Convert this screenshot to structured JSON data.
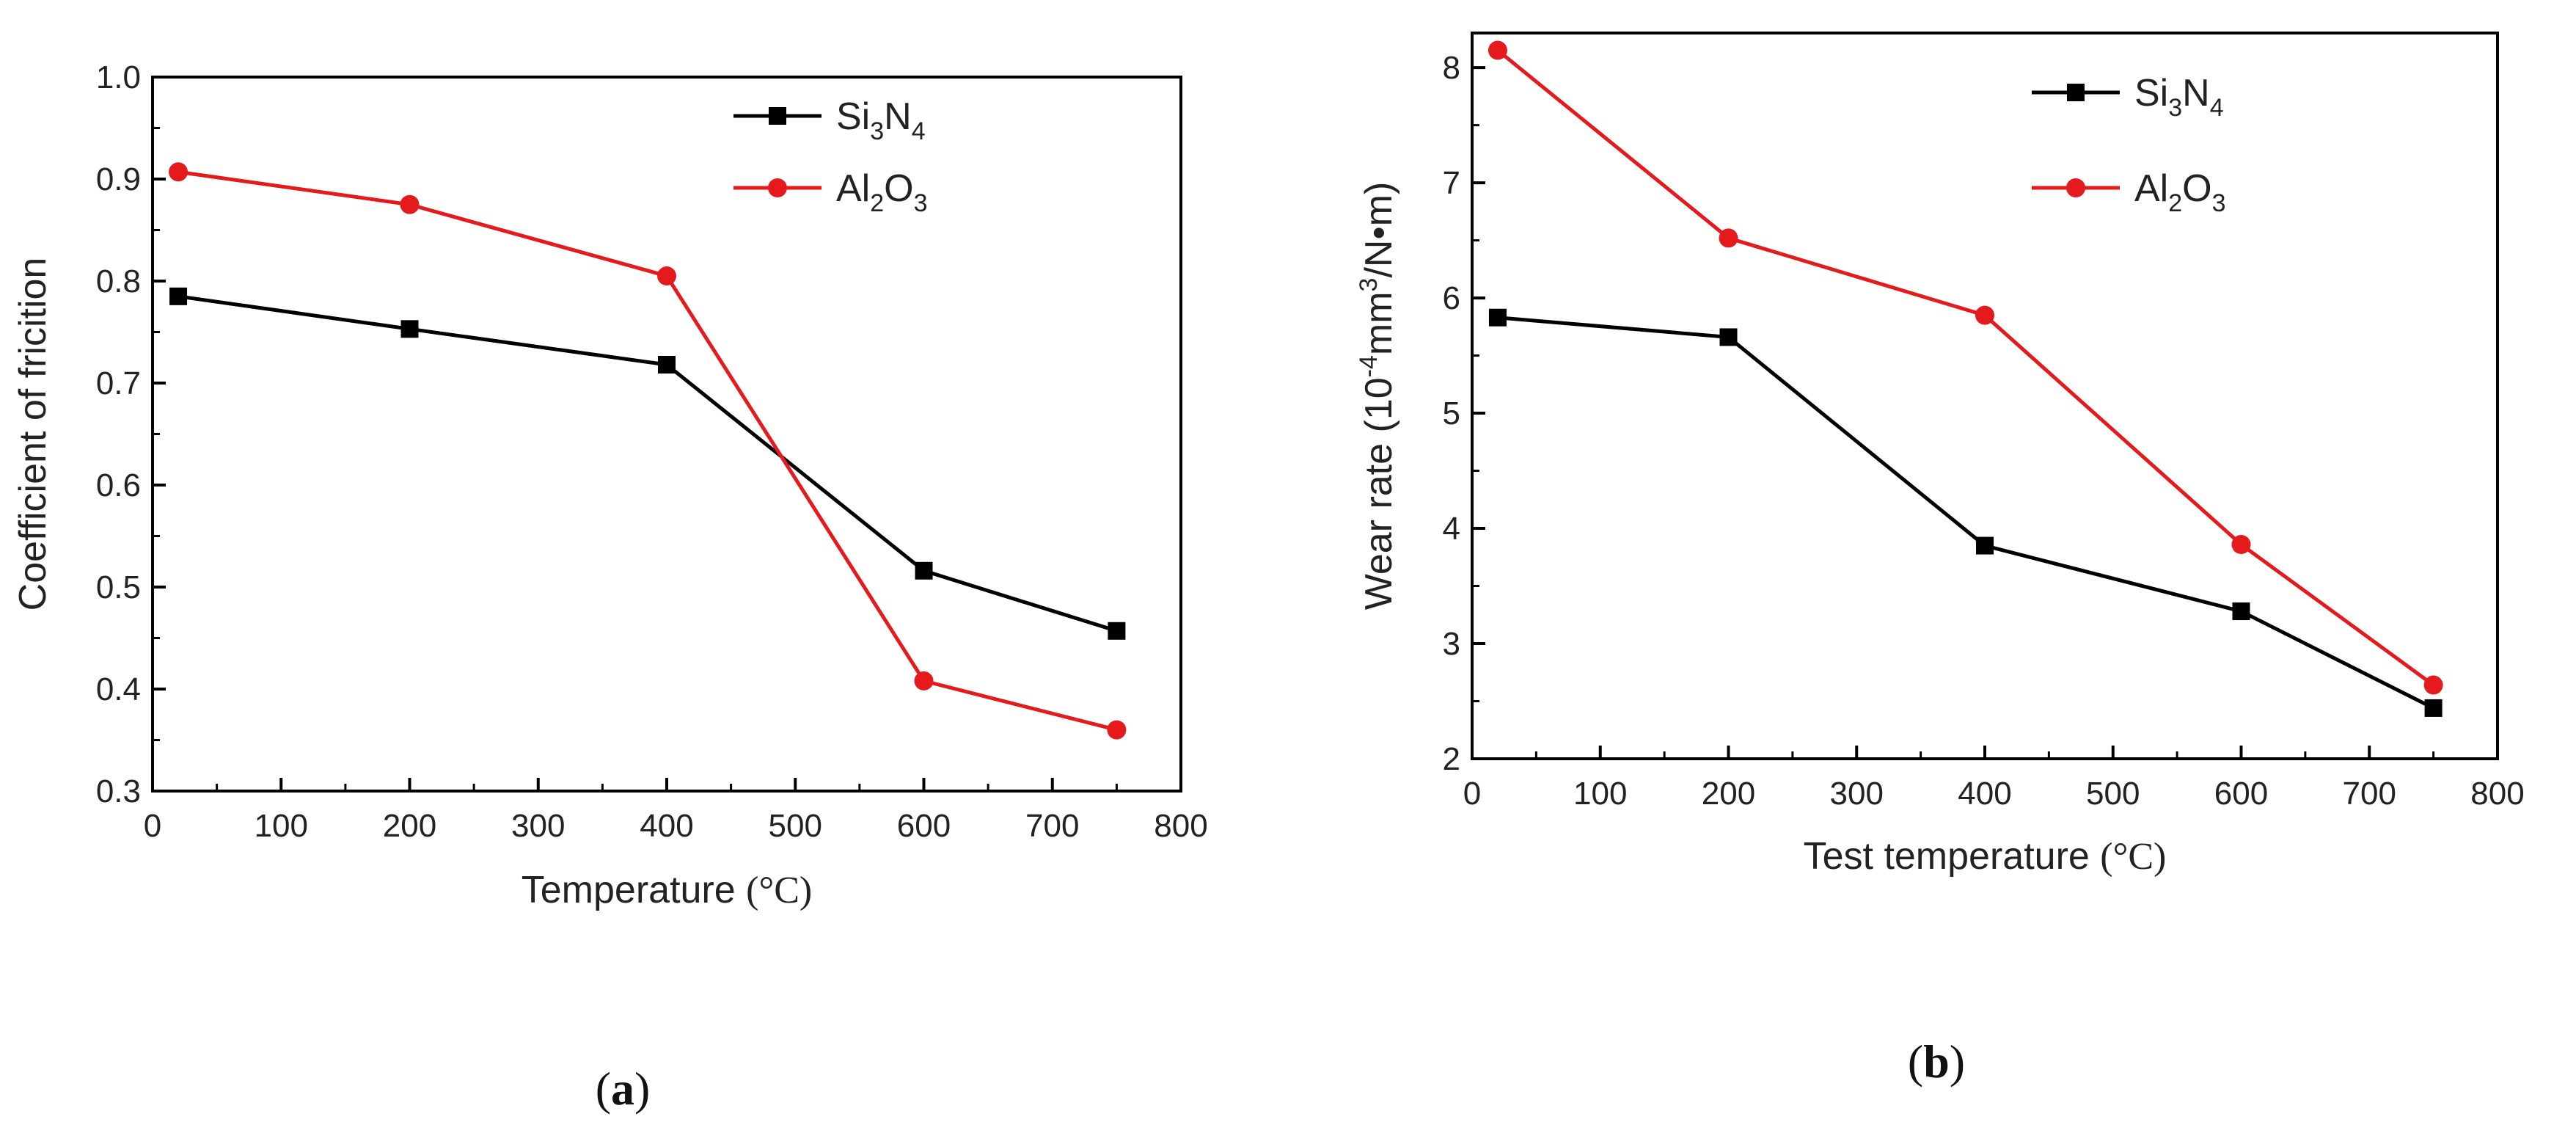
{
  "chart_data": [
    {
      "type": "line",
      "panel": "(a)",
      "panel_letter": "a",
      "xlabel": "Temperature",
      "xlabel_unit": "(°C)",
      "ylabel": "Coefficient of fricition",
      "xlim": [
        0,
        800
      ],
      "ylim": [
        0.3,
        1.0
      ],
      "xticks": [
        0,
        100,
        200,
        300,
        400,
        500,
        600,
        700,
        800
      ],
      "yticks": [
        "0.3",
        "0.4",
        "0.5",
        "0.6",
        "0.7",
        "0.8",
        "0.9",
        "1.0"
      ],
      "legend_position": "top-right",
      "series": [
        {
          "name": "Si3N4",
          "label_parts": [
            [
              "Si",
              ""
            ],
            [
              "3",
              "sub"
            ],
            [
              "N",
              ""
            ],
            [
              "4",
              "sub"
            ]
          ],
          "color": "#000000",
          "marker": "square",
          "x": [
            20,
            200,
            400,
            600,
            750
          ],
          "values": [
            0.785,
            0.753,
            0.718,
            0.516,
            0.457
          ]
        },
        {
          "name": "Al2O3",
          "label_parts": [
            [
              "Al",
              ""
            ],
            [
              "2",
              "sub"
            ],
            [
              "O",
              ""
            ],
            [
              "3",
              "sub"
            ]
          ],
          "color": "#e41a1c",
          "marker": "circle",
          "x": [
            20,
            200,
            400,
            600,
            750
          ],
          "values": [
            0.907,
            0.875,
            0.805,
            0.408,
            0.36
          ]
        }
      ]
    },
    {
      "type": "line",
      "panel": "(b)",
      "panel_letter": "b",
      "xlabel": "Test temperature",
      "xlabel_unit": "(°C)",
      "ylabel": "Wear rate (10-4mm3/N•m)",
      "ylabel_parts": [
        [
          "Wear rate (10",
          ""
        ],
        [
          "-4",
          "sup"
        ],
        [
          "mm",
          ""
        ],
        [
          "3",
          "sup"
        ],
        [
          "/N•m)",
          ""
        ]
      ],
      "xlim": [
        0,
        800
      ],
      "ylim": [
        2,
        8.3
      ],
      "xticks": [
        0,
        100,
        200,
        300,
        400,
        500,
        600,
        700,
        800
      ],
      "yticks": [
        "2",
        "3",
        "4",
        "5",
        "6",
        "7",
        "8"
      ],
      "legend_position": "top-right",
      "series": [
        {
          "name": "Si3N4",
          "label_parts": [
            [
              "Si",
              ""
            ],
            [
              "3",
              "sub"
            ],
            [
              "N",
              ""
            ],
            [
              "4",
              "sub"
            ]
          ],
          "color": "#000000",
          "marker": "square",
          "x": [
            20,
            200,
            400,
            600,
            750
          ],
          "values": [
            5.83,
            5.66,
            3.85,
            3.28,
            2.44
          ]
        },
        {
          "name": "Al2O3",
          "label_parts": [
            [
              "Al",
              ""
            ],
            [
              "2",
              "sub"
            ],
            [
              "O",
              ""
            ],
            [
              "3",
              "sub"
            ]
          ],
          "color": "#e41a1c",
          "marker": "circle",
          "x": [
            20,
            200,
            400,
            600,
            750
          ],
          "values": [
            8.15,
            6.52,
            5.85,
            3.86,
            2.64
          ]
        }
      ]
    }
  ]
}
